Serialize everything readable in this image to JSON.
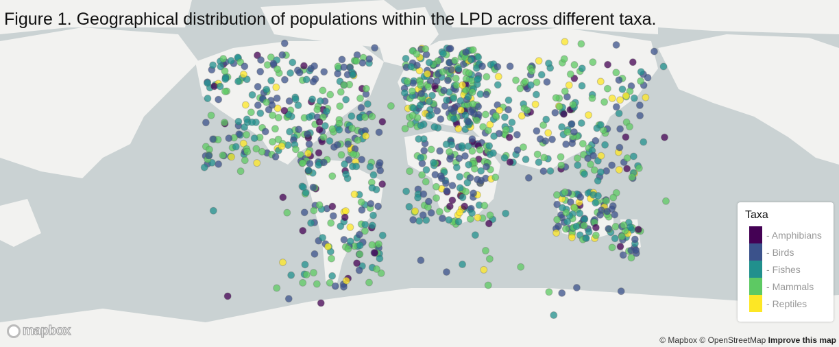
{
  "title": "Figure 1. Geographical distribution of populations within the LPD across different taxa.",
  "legend": {
    "title": "Taxa",
    "items": [
      {
        "label": "Amphibians",
        "color": "#440154"
      },
      {
        "label": "Birds",
        "color": "#3b528b"
      },
      {
        "label": "Fishes",
        "color": "#21908d"
      },
      {
        "label": "Mammals",
        "color": "#5dc963"
      },
      {
        "label": "Reptiles",
        "color": "#fde725"
      }
    ]
  },
  "attribution": {
    "mapbox": "© Mapbox",
    "osm": "© OpenStreetMap",
    "improve": "Improve this map"
  },
  "logo": {
    "text": "mapbox"
  },
  "colors": {
    "ocean": "#cad2d3",
    "land": "#f2f2f0"
  }
}
